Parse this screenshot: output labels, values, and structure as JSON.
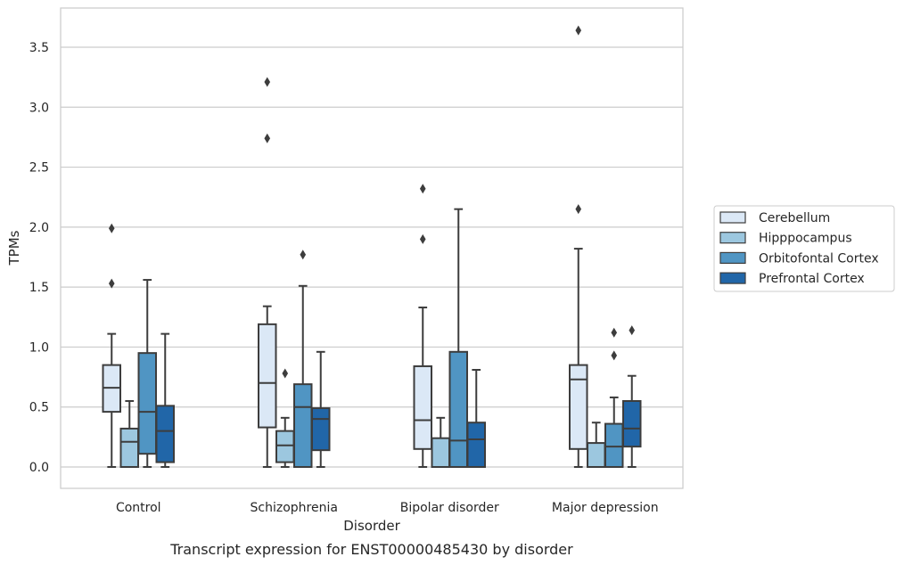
{
  "chart_data": {
    "type": "box",
    "caption": "Transcript expression for ENST00000485430 by disorder",
    "xlabel": "Disorder",
    "ylabel": "TPMs",
    "ylim": [
      -0.18,
      3.83
    ],
    "yticks": [
      "0.0",
      "0.5",
      "1.0",
      "1.5",
      "2.0",
      "2.5",
      "3.0",
      "3.5"
    ],
    "grid": "horizontal",
    "legend_position": "right",
    "categories": [
      "Control",
      "Schizophrenia",
      "Bipolar disorder",
      "Major depression"
    ],
    "series": [
      {
        "name": "Cerebellum",
        "color": "#dbe8f6",
        "boxes": [
          {
            "whislo": 0.0,
            "q1": 0.46,
            "med": 0.66,
            "q3": 0.85,
            "whishi": 1.11,
            "fliers": [
              1.53,
              1.99
            ]
          },
          {
            "whislo": 0.0,
            "q1": 0.33,
            "med": 0.7,
            "q3": 1.19,
            "whishi": 1.34,
            "fliers": [
              2.74,
              3.21
            ]
          },
          {
            "whislo": 0.0,
            "q1": 0.15,
            "med": 0.39,
            "q3": 0.84,
            "whishi": 1.33,
            "fliers": [
              1.9,
              2.32
            ]
          },
          {
            "whislo": 0.0,
            "q1": 0.15,
            "med": 0.73,
            "q3": 0.85,
            "whishi": 1.82,
            "fliers": [
              2.15,
              3.64
            ]
          }
        ]
      },
      {
        "name": "Hipppocampus",
        "color": "#9cc7df",
        "boxes": [
          {
            "whislo": 0.0,
            "q1": 0.0,
            "med": 0.21,
            "q3": 0.32,
            "whishi": 0.55,
            "fliers": []
          },
          {
            "whislo": 0.0,
            "q1": 0.04,
            "med": 0.18,
            "q3": 0.3,
            "whishi": 0.41,
            "fliers": [
              0.78
            ]
          },
          {
            "whislo": 0.0,
            "q1": 0.0,
            "med": 0.0,
            "q3": 0.24,
            "whishi": 0.41,
            "fliers": []
          },
          {
            "whislo": 0.0,
            "q1": 0.0,
            "med": 0.0,
            "q3": 0.2,
            "whishi": 0.37,
            "fliers": []
          }
        ]
      },
      {
        "name": "Orbitofontal Cortex",
        "color": "#5095c3",
        "boxes": [
          {
            "whislo": 0.0,
            "q1": 0.11,
            "med": 0.46,
            "q3": 0.95,
            "whishi": 1.56,
            "fliers": []
          },
          {
            "whislo": 0.0,
            "q1": 0.0,
            "med": 0.5,
            "q3": 0.69,
            "whishi": 1.51,
            "fliers": [
              1.77
            ]
          },
          {
            "whislo": 0.0,
            "q1": 0.0,
            "med": 0.22,
            "q3": 0.96,
            "whishi": 2.15,
            "fliers": []
          },
          {
            "whislo": 0.0,
            "q1": 0.0,
            "med": 0.17,
            "q3": 0.36,
            "whishi": 0.58,
            "fliers": [
              0.93,
              1.12
            ]
          }
        ]
      },
      {
        "name": "Prefrontal Cortex",
        "color": "#2166a8",
        "boxes": [
          {
            "whislo": 0.0,
            "q1": 0.04,
            "med": 0.3,
            "q3": 0.51,
            "whishi": 1.11,
            "fliers": []
          },
          {
            "whislo": 0.0,
            "q1": 0.14,
            "med": 0.4,
            "q3": 0.49,
            "whishi": 0.96,
            "fliers": []
          },
          {
            "whislo": 0.0,
            "q1": 0.0,
            "med": 0.23,
            "q3": 0.37,
            "whishi": 0.81,
            "fliers": []
          },
          {
            "whislo": 0.0,
            "q1": 0.17,
            "med": 0.32,
            "q3": 0.55,
            "whishi": 0.76,
            "fliers": [
              1.14
            ]
          }
        ]
      }
    ]
  }
}
